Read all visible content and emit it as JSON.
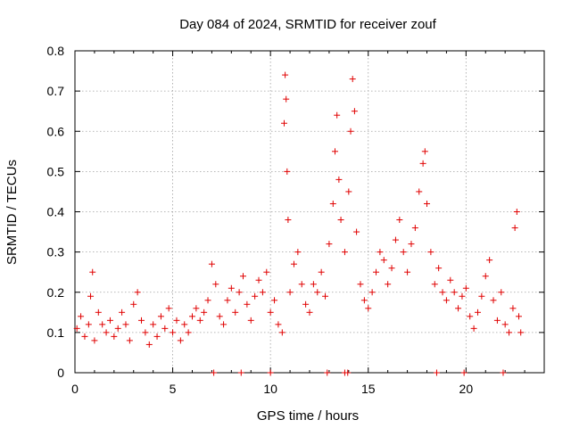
{
  "chart_data": {
    "type": "scatter",
    "title": "Day 084 of 2024, SRMTID for receiver zouf",
    "xlabel": "GPS time / hours",
    "ylabel": "SRMTID / TECUs",
    "xlim": [
      0,
      24
    ],
    "ylim": [
      0,
      0.8
    ],
    "x_ticks": [
      0,
      5,
      10,
      15,
      20
    ],
    "x_tick_labels": [
      "0",
      "5",
      "10",
      "15",
      "20"
    ],
    "y_ticks": [
      0,
      0.1,
      0.2,
      0.3,
      0.4,
      0.5,
      0.6,
      0.7,
      0.8
    ],
    "y_tick_labels": [
      "0",
      "0.1",
      "0.2",
      "0.3",
      "0.4",
      "0.5",
      "0.6",
      "0.7",
      "0.8"
    ],
    "grid": true,
    "marker": "plus",
    "color": "#e00000",
    "series": [
      {
        "name": "SRMTID",
        "points": [
          [
            0.1,
            0.11
          ],
          [
            0.3,
            0.14
          ],
          [
            0.5,
            0.09
          ],
          [
            0.7,
            0.12
          ],
          [
            0.8,
            0.19
          ],
          [
            0.9,
            0.25
          ],
          [
            1.0,
            0.08
          ],
          [
            1.2,
            0.15
          ],
          [
            1.4,
            0.12
          ],
          [
            1.6,
            0.1
          ],
          [
            1.8,
            0.13
          ],
          [
            2.0,
            0.09
          ],
          [
            2.2,
            0.11
          ],
          [
            2.4,
            0.15
          ],
          [
            2.6,
            0.12
          ],
          [
            2.8,
            0.08
          ],
          [
            3.0,
            0.17
          ],
          [
            3.2,
            0.2
          ],
          [
            3.4,
            0.13
          ],
          [
            3.6,
            0.1
          ],
          [
            3.8,
            0.07
          ],
          [
            4.0,
            0.12
          ],
          [
            4.2,
            0.09
          ],
          [
            4.4,
            0.14
          ],
          [
            4.6,
            0.11
          ],
          [
            4.8,
            0.16
          ],
          [
            5.0,
            0.1
          ],
          [
            5.2,
            0.13
          ],
          [
            5.4,
            0.08
          ],
          [
            5.6,
            0.12
          ],
          [
            5.8,
            0.1
          ],
          [
            6.0,
            0.14
          ],
          [
            6.2,
            0.16
          ],
          [
            6.4,
            0.13
          ],
          [
            6.6,
            0.15
          ],
          [
            6.8,
            0.18
          ],
          [
            7.0,
            0.27
          ],
          [
            7.2,
            0.22
          ],
          [
            7.4,
            0.14
          ],
          [
            7.6,
            0.12
          ],
          [
            7.8,
            0.18
          ],
          [
            8.0,
            0.21
          ],
          [
            8.2,
            0.15
          ],
          [
            8.4,
            0.2
          ],
          [
            8.6,
            0.24
          ],
          [
            8.8,
            0.17
          ],
          [
            9.0,
            0.13
          ],
          [
            9.2,
            0.19
          ],
          [
            9.4,
            0.23
          ],
          [
            9.6,
            0.2
          ],
          [
            9.8,
            0.25
          ],
          [
            10.0,
            0.15
          ],
          [
            10.2,
            0.18
          ],
          [
            10.4,
            0.12
          ],
          [
            10.6,
            0.1
          ],
          [
            10.7,
            0.62
          ],
          [
            10.75,
            0.74
          ],
          [
            10.8,
            0.68
          ],
          [
            10.85,
            0.5
          ],
          [
            10.9,
            0.38
          ],
          [
            11.0,
            0.2
          ],
          [
            11.2,
            0.27
          ],
          [
            11.4,
            0.3
          ],
          [
            11.6,
            0.22
          ],
          [
            11.8,
            0.17
          ],
          [
            12.0,
            0.15
          ],
          [
            12.2,
            0.22
          ],
          [
            12.4,
            0.2
          ],
          [
            12.6,
            0.25
          ],
          [
            12.8,
            0.19
          ],
          [
            13.0,
            0.32
          ],
          [
            13.2,
            0.42
          ],
          [
            13.3,
            0.55
          ],
          [
            13.4,
            0.64
          ],
          [
            13.5,
            0.48
          ],
          [
            13.6,
            0.38
          ],
          [
            13.8,
            0.3
          ],
          [
            14.0,
            0.45
          ],
          [
            14.1,
            0.6
          ],
          [
            14.2,
            0.73
          ],
          [
            14.3,
            0.65
          ],
          [
            14.4,
            0.35
          ],
          [
            14.6,
            0.22
          ],
          [
            14.8,
            0.18
          ],
          [
            15.0,
            0.16
          ],
          [
            15.2,
            0.2
          ],
          [
            15.4,
            0.25
          ],
          [
            15.6,
            0.3
          ],
          [
            15.8,
            0.28
          ],
          [
            16.0,
            0.22
          ],
          [
            16.2,
            0.26
          ],
          [
            16.4,
            0.33
          ],
          [
            16.6,
            0.38
          ],
          [
            16.8,
            0.3
          ],
          [
            17.0,
            0.25
          ],
          [
            17.2,
            0.32
          ],
          [
            17.4,
            0.36
          ],
          [
            17.6,
            0.45
          ],
          [
            17.8,
            0.52
          ],
          [
            17.9,
            0.55
          ],
          [
            18.0,
            0.42
          ],
          [
            18.2,
            0.3
          ],
          [
            18.4,
            0.22
          ],
          [
            18.6,
            0.26
          ],
          [
            18.8,
            0.2
          ],
          [
            19.0,
            0.18
          ],
          [
            19.2,
            0.23
          ],
          [
            19.4,
            0.2
          ],
          [
            19.6,
            0.16
          ],
          [
            19.8,
            0.19
          ],
          [
            20.0,
            0.21
          ],
          [
            20.2,
            0.14
          ],
          [
            20.4,
            0.11
          ],
          [
            20.6,
            0.15
          ],
          [
            20.8,
            0.19
          ],
          [
            21.0,
            0.24
          ],
          [
            21.2,
            0.28
          ],
          [
            21.4,
            0.18
          ],
          [
            21.6,
            0.13
          ],
          [
            21.8,
            0.2
          ],
          [
            22.0,
            0.12
          ],
          [
            22.2,
            0.1
          ],
          [
            22.4,
            0.16
          ],
          [
            22.5,
            0.36
          ],
          [
            22.6,
            0.4
          ],
          [
            22.7,
            0.14
          ],
          [
            22.8,
            0.1
          ]
        ]
      }
    ],
    "zero_marks": [
      7.1,
      8.5,
      10.0,
      12.9,
      13.8,
      13.95,
      18.5,
      19.9,
      21.9
    ]
  }
}
